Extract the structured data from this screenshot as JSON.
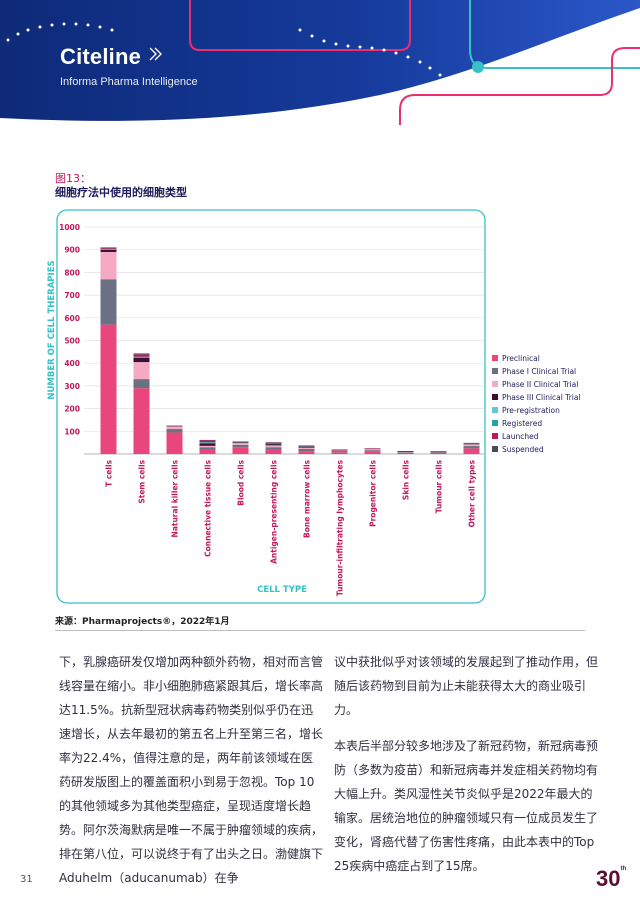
{
  "header": {
    "brand": "Citeline",
    "subtitle": "Informa Pharma Intelligence",
    "colors": {
      "navy": "#12328c",
      "pink": "#ea2f6e",
      "teal": "#36c1c4"
    }
  },
  "figure": {
    "label": "图13：",
    "title": "细胞疗法中使用的细胞类型"
  },
  "chart_data": {
    "type": "bar",
    "stacked": true,
    "ylabel": "NUMBER OF CELL THERAPIES",
    "xlabel": "CELL TYPE",
    "ylim": [
      0,
      1000
    ],
    "yticks": [
      "100",
      "200",
      "300",
      "400",
      "500",
      "600",
      "700",
      "800",
      "900",
      "1000"
    ],
    "categories": [
      "T cells",
      "Stem cells",
      "Natural killer cells",
      "Connective tissue cells",
      "Blood cells",
      "Antigen-presenting cells",
      "Bone marrow cells",
      "Tumour-infiltrating lymphocytes",
      "Progenitor cells",
      "Skin cells",
      "Tumour cells",
      "Other cell types"
    ],
    "series": [
      {
        "name": "Preclinical",
        "color": "#e8467c",
        "values": [
          570,
          290,
          95,
          18,
          30,
          18,
          12,
          8,
          12,
          5,
          6,
          25
        ]
      },
      {
        "name": "Phase I Clinical Trial",
        "color": "#6b7183",
        "values": [
          200,
          40,
          15,
          12,
          10,
          12,
          10,
          5,
          5,
          3,
          3,
          10
        ]
      },
      {
        "name": "Phase II Clinical Trial",
        "color": "#f4aac2",
        "values": [
          120,
          75,
          12,
          6,
          8,
          8,
          6,
          3,
          5,
          2,
          3,
          8
        ]
      },
      {
        "name": "Phase III Clinical Trial",
        "color": "#3d0f33",
        "values": [
          10,
          20,
          2,
          12,
          3,
          6,
          5,
          2,
          2,
          1,
          1,
          2
        ]
      },
      {
        "name": "Pre-registration",
        "color": "#5dc8d6",
        "values": [
          1,
          1,
          0,
          1,
          0,
          0,
          0,
          0,
          0,
          0,
          0,
          0
        ]
      },
      {
        "name": "Registered",
        "color": "#21a3a3",
        "values": [
          2,
          3,
          0,
          3,
          1,
          1,
          1,
          0,
          0,
          0,
          0,
          1
        ]
      },
      {
        "name": "Launched",
        "color": "#c2185b",
        "values": [
          3,
          10,
          0,
          8,
          2,
          5,
          2,
          1,
          1,
          1,
          0,
          2
        ]
      },
      {
        "name": "Suspended",
        "color": "#4a4a58",
        "values": [
          4,
          4,
          1,
          2,
          1,
          2,
          2,
          1,
          0,
          1,
          0,
          1
        ]
      }
    ]
  },
  "source": "来源：Pharmaprojects®，2022年1月",
  "body": {
    "left": [
      "下，乳腺癌研发仅增加两种额外药物，相对而言管线容量在缩小。非小细胞肺癌紧跟其后，增长率高达11.5%。抗新型冠状病毒药物类别似乎仍在迅速增长，从去年最初的第五名上升至第三名，增长率为22.4%，值得注意的是，两年前该领域在医药研发版图上的覆盖面积小到易于忽视。Top 10的其他领域多为其他类型癌症，呈现适度增长趋势。阿尔茨海默病是唯一不属于肿瘤领域的疾病，排在第八位，可以说终于有了出头之日。渤健旗下Aduhelm（aducanumab）在争"
    ],
    "right": [
      "议中获批似乎对该领域的发展起到了推动作用，但随后该药物到目前为止未能获得太大的商业吸引力。",
      "本表后半部分较多地涉及了新冠药物，新冠病毒预防（多数为疫苗）和新冠病毒并发症相关药物均有大幅上升。类风湿性关节炎似乎是2022年最大的输家。居统治地位的肿瘤领域只有一位成员发生了变化，肾癌代替了伤害性疼痛，由此本表中的Top 25疾病中癌症占到了15席。"
    ]
  },
  "footer": {
    "page_number": "31",
    "badge": "30",
    "badge_sup": "th"
  }
}
